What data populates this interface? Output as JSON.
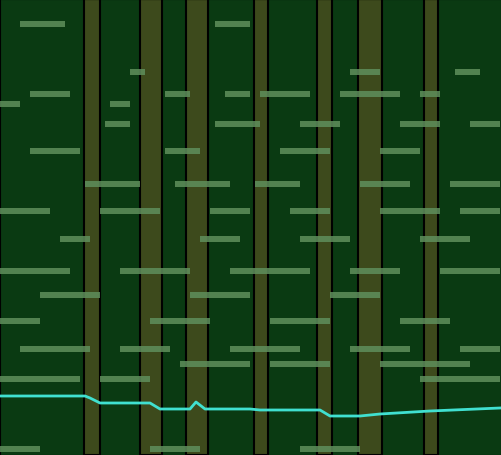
{
  "chart_data": {
    "type": "line",
    "tick_labels": false,
    "xlim": [
      0,
      501
    ],
    "ylim": [
      0,
      456
    ],
    "series": [
      {
        "type": "band",
        "color": "#3d4a1c",
        "ranges": [
          [
            84,
            100
          ],
          [
            140,
            162
          ],
          [
            186,
            208
          ],
          [
            254,
            268
          ],
          [
            317,
            332
          ],
          [
            358,
            382
          ],
          [
            424,
            438
          ]
        ]
      },
      {
        "type": "dash",
        "color": "#5f8f5c",
        "rows": [
          {
            "y": 431,
            "spans": [
              [
                20,
                65
              ],
              [
                215,
                250
              ]
            ]
          },
          {
            "y": 383,
            "spans": [
              [
                130,
                145
              ],
              [
                350,
                380
              ],
              [
                455,
                480
              ]
            ]
          },
          {
            "y": 361,
            "spans": [
              [
                30,
                70
              ],
              [
                165,
                190
              ],
              [
                225,
                250
              ],
              [
                260,
                310
              ],
              [
                340,
                400
              ],
              [
                420,
                440
              ]
            ]
          },
          {
            "y": 351,
            "spans": [
              [
                0,
                20
              ],
              [
                110,
                130
              ]
            ]
          },
          {
            "y": 331,
            "spans": [
              [
                105,
                130
              ],
              [
                215,
                260
              ],
              [
                300,
                340
              ],
              [
                400,
                440
              ],
              [
                470,
                500
              ]
            ]
          },
          {
            "y": 304,
            "spans": [
              [
                30,
                80
              ],
              [
                165,
                200
              ],
              [
                280,
                330
              ],
              [
                380,
                420
              ]
            ]
          },
          {
            "y": 271,
            "spans": [
              [
                85,
                140
              ],
              [
                175,
                230
              ],
              [
                255,
                300
              ],
              [
                360,
                410
              ],
              [
                450,
                500
              ]
            ]
          },
          {
            "y": 244,
            "spans": [
              [
                0,
                50
              ],
              [
                100,
                160
              ],
              [
                210,
                250
              ],
              [
                290,
                330
              ],
              [
                380,
                440
              ],
              [
                460,
                500
              ]
            ]
          },
          {
            "y": 216,
            "spans": [
              [
                60,
                90
              ],
              [
                200,
                240
              ],
              [
                300,
                350
              ],
              [
                420,
                470
              ]
            ]
          },
          {
            "y": 184,
            "spans": [
              [
                0,
                70
              ],
              [
                120,
                190
              ],
              [
                230,
                310
              ],
              [
                350,
                400
              ],
              [
                440,
                500
              ]
            ]
          },
          {
            "y": 160,
            "spans": [
              [
                40,
                100
              ],
              [
                190,
                250
              ],
              [
                330,
                380
              ]
            ]
          },
          {
            "y": 134,
            "spans": [
              [
                0,
                40
              ],
              [
                150,
                210
              ],
              [
                270,
                330
              ],
              [
                400,
                450
              ]
            ]
          },
          {
            "y": 106,
            "spans": [
              [
                20,
                90
              ],
              [
                120,
                170
              ],
              [
                230,
                300
              ],
              [
                350,
                410
              ],
              [
                460,
                500
              ]
            ]
          },
          {
            "y": 91,
            "spans": [
              [
                180,
                250
              ],
              [
                270,
                330
              ],
              [
                380,
                470
              ]
            ]
          },
          {
            "y": 76,
            "spans": [
              [
                0,
                80
              ],
              [
                100,
                150
              ],
              [
                420,
                500
              ]
            ]
          },
          {
            "y": 6,
            "spans": [
              [
                0,
                40
              ],
              [
                150,
                200
              ],
              [
                300,
                360
              ]
            ]
          }
        ]
      },
      {
        "type": "line",
        "color": "#40e0d0",
        "x": [
          0,
          85,
          90,
          100,
          150,
          160,
          190,
          196,
          205,
          250,
          260,
          320,
          330,
          360,
          380,
          430,
          500
        ],
        "values": [
          59,
          59,
          57,
          52,
          52,
          46,
          46,
          53,
          46,
          46,
          45,
          45,
          39,
          39,
          41,
          44,
          47
        ]
      }
    ]
  }
}
